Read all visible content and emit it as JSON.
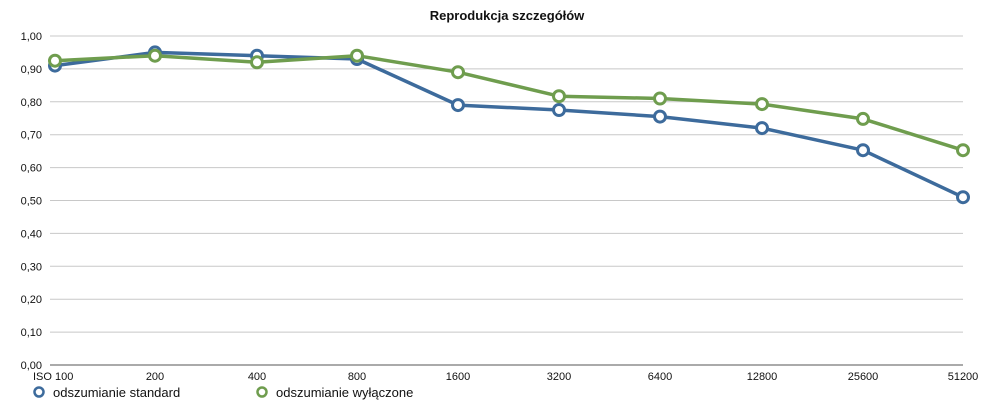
{
  "chart_data": {
    "type": "line",
    "title": "Reprodukcja szczegółów",
    "xlabel": "",
    "ylabel": "",
    "categories": [
      "ISO 100",
      "200",
      "400",
      "800",
      "1600",
      "3200",
      "6400",
      "12800",
      "25600",
      "51200"
    ],
    "ylim": [
      0,
      1
    ],
    "yticks": [
      "0,00",
      "0,10",
      "0,20",
      "0,30",
      "0,40",
      "0,50",
      "0,60",
      "0,70",
      "0,80",
      "0,90",
      "1,00"
    ],
    "grid": true,
    "legend_position": "bottom-left",
    "series": [
      {
        "name": "odszumianie standard",
        "color": "#3d6b9c",
        "values": [
          0.91,
          0.95,
          0.94,
          0.93,
          0.79,
          0.775,
          0.755,
          0.72,
          0.653,
          0.51
        ]
      },
      {
        "name": "odszumianie wyłączone",
        "color": "#6f9d4e",
        "values": [
          0.925,
          0.94,
          0.92,
          0.94,
          0.89,
          0.817,
          0.81,
          0.793,
          0.748,
          0.653
        ]
      }
    ]
  }
}
